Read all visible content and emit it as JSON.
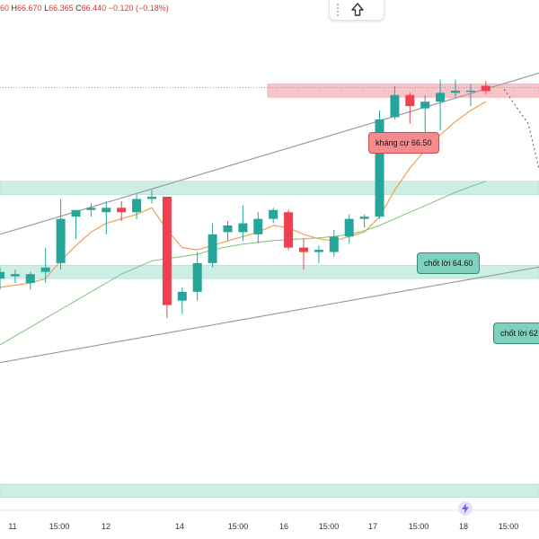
{
  "ohlc": {
    "open_tail": "60",
    "high_label": "H",
    "high": "66.670",
    "low_label": "L",
    "low": "66.365",
    "close_label": "C",
    "close": "66.440",
    "change": "−0.120",
    "change_pct": "(−0.18%)"
  },
  "annotations": {
    "resistance": "kháng cự 66.50",
    "tp1": "chốt lời 64.60",
    "tp2": "chốt lời 62"
  },
  "colors": {
    "up": "#26a69a",
    "down": "#ef4050",
    "resistance_zone": "#f7c5c8",
    "support_zone": "#cdeee5",
    "ma_fast": "#f0a050",
    "ma_slow": "#7cc37a",
    "channel": "#9b9b9b",
    "dotted": "#555555"
  },
  "icons": {
    "toolbar_move": "drag-handle-icon",
    "toolbar_up": "arrow-up-icon",
    "flash": "lightning-icon"
  },
  "chart_data": {
    "type": "candlestick",
    "x_tick_labels": [
      "11",
      "15:00",
      "12",
      "14",
      "15:00",
      "16",
      "15:00",
      "17",
      "15:00",
      "18",
      "15:00"
    ],
    "candles": [
      {
        "o": 62.2,
        "h": 62.45,
        "l": 61.95,
        "c": 62.35
      },
      {
        "o": 62.25,
        "h": 62.4,
        "l": 62.1,
        "c": 62.3
      },
      {
        "o": 62.1,
        "h": 62.35,
        "l": 61.95,
        "c": 62.3
      },
      {
        "o": 62.35,
        "h": 62.9,
        "l": 62.1,
        "c": 62.45
      },
      {
        "o": 62.55,
        "h": 64.0,
        "l": 62.4,
        "c": 63.55
      },
      {
        "o": 63.6,
        "h": 63.75,
        "l": 63.1,
        "c": 63.75
      },
      {
        "o": 63.75,
        "h": 63.9,
        "l": 63.6,
        "c": 63.8
      },
      {
        "o": 63.7,
        "h": 63.95,
        "l": 63.2,
        "c": 63.8
      },
      {
        "o": 63.8,
        "h": 63.95,
        "l": 63.5,
        "c": 63.7
      },
      {
        "o": 63.7,
        "h": 64.1,
        "l": 63.55,
        "c": 64.0
      },
      {
        "o": 64.0,
        "h": 64.2,
        "l": 63.9,
        "c": 64.05
      },
      {
        "o": 64.05,
        "h": 64.05,
        "l": 61.3,
        "c": 61.6
      },
      {
        "o": 61.7,
        "h": 62.0,
        "l": 61.4,
        "c": 61.9
      },
      {
        "o": 61.9,
        "h": 62.8,
        "l": 61.7,
        "c": 62.55
      },
      {
        "o": 62.55,
        "h": 63.45,
        "l": 62.45,
        "c": 63.2
      },
      {
        "o": 63.25,
        "h": 63.5,
        "l": 63.05,
        "c": 63.4
      },
      {
        "o": 63.25,
        "h": 63.85,
        "l": 63.05,
        "c": 63.45
      },
      {
        "o": 63.2,
        "h": 63.7,
        "l": 63.0,
        "c": 63.55
      },
      {
        "o": 63.55,
        "h": 63.8,
        "l": 63.45,
        "c": 63.75
      },
      {
        "o": 63.7,
        "h": 63.75,
        "l": 62.85,
        "c": 62.9
      },
      {
        "o": 62.9,
        "h": 63.1,
        "l": 62.4,
        "c": 62.8
      },
      {
        "o": 62.8,
        "h": 62.95,
        "l": 62.55,
        "c": 62.85
      },
      {
        "o": 62.8,
        "h": 63.3,
        "l": 62.7,
        "c": 63.15
      },
      {
        "o": 63.15,
        "h": 63.65,
        "l": 63.0,
        "c": 63.55
      },
      {
        "o": 63.55,
        "h": 63.65,
        "l": 63.35,
        "c": 63.6
      },
      {
        "o": 63.6,
        "h": 66.0,
        "l": 63.55,
        "c": 65.8
      },
      {
        "o": 65.85,
        "h": 66.55,
        "l": 65.8,
        "c": 66.35
      },
      {
        "o": 66.35,
        "h": 66.4,
        "l": 65.7,
        "c": 66.1
      },
      {
        "o": 66.05,
        "h": 66.35,
        "l": 65.5,
        "c": 66.2
      },
      {
        "o": 66.2,
        "h": 66.7,
        "l": 65.55,
        "c": 66.4
      },
      {
        "o": 66.4,
        "h": 66.7,
        "l": 66.3,
        "c": 66.45
      },
      {
        "o": 66.45,
        "h": 66.6,
        "l": 66.1,
        "c": 66.45
      },
      {
        "o": 66.56,
        "h": 66.67,
        "l": 66.37,
        "c": 66.44
      }
    ],
    "ma_fast": [
      62.0,
      62.05,
      62.1,
      62.2,
      62.6,
      62.95,
      63.25,
      63.45,
      63.55,
      63.65,
      63.8,
      63.3,
      62.9,
      62.85,
      62.95,
      63.05,
      63.15,
      63.25,
      63.4,
      63.35,
      63.2,
      63.1,
      63.05,
      63.15,
      63.25,
      63.6,
      64.2,
      64.7,
      65.1,
      65.45,
      65.75,
      66.0,
      66.2
    ],
    "ma_slow": [
      60.7,
      60.9,
      61.1,
      61.3,
      61.5,
      61.7,
      61.9,
      62.1,
      62.3,
      62.45,
      62.6,
      62.65,
      62.7,
      62.75,
      62.85,
      62.92,
      62.98,
      63.02,
      63.06,
      63.08,
      63.1,
      63.12,
      63.15,
      63.2,
      63.28,
      63.4,
      63.55,
      63.7,
      63.85,
      64.0,
      64.15,
      64.28,
      64.4
    ],
    "resistance_zone": [
      66.3,
      66.6
    ],
    "support_zones": [
      [
        64.1,
        64.4
      ],
      [
        62.2,
        62.5
      ],
      [
        57.25,
        57.55
      ]
    ],
    "channel_upper": [
      [
        0,
        63.2
      ],
      [
        37,
        67.0
      ]
    ],
    "channel_lower": [
      [
        0,
        60.3
      ],
      [
        37,
        62.55
      ]
    ],
    "dotted_level": 66.52,
    "projection": [
      [
        33.2,
        66.48
      ],
      [
        34.8,
        65.7
      ],
      [
        35.7,
        64.4
      ],
      [
        37.3,
        65.2
      ]
    ],
    "y_range": [
      57.0,
      68.5
    ]
  }
}
